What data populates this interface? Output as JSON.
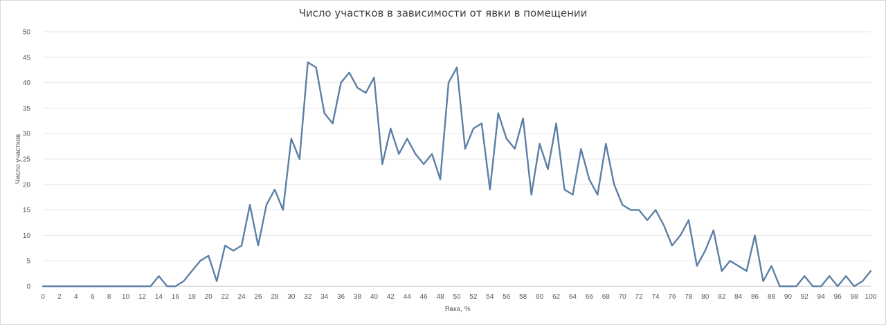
{
  "chart_data": {
    "type": "line",
    "title": "Число участков в зависимости от явки в помещении",
    "xlabel": "Явка, %",
    "ylabel": "Число участков",
    "xlim": [
      0,
      100
    ],
    "ylim": [
      0,
      50
    ],
    "yticks": [
      0,
      5,
      10,
      15,
      20,
      25,
      30,
      35,
      40,
      45,
      50
    ],
    "xticks": [
      0,
      2,
      4,
      6,
      8,
      10,
      12,
      14,
      16,
      18,
      20,
      22,
      24,
      26,
      28,
      30,
      32,
      34,
      36,
      38,
      40,
      42,
      44,
      46,
      48,
      50,
      52,
      54,
      56,
      58,
      60,
      62,
      64,
      66,
      68,
      70,
      72,
      74,
      76,
      78,
      80,
      82,
      84,
      86,
      88,
      90,
      92,
      94,
      96,
      98,
      100
    ],
    "grid": true,
    "legend": "none",
    "color": "#5b7fa6",
    "x": [
      0,
      1,
      2,
      3,
      4,
      5,
      6,
      7,
      8,
      9,
      10,
      11,
      12,
      13,
      14,
      15,
      16,
      17,
      18,
      19,
      20,
      21,
      22,
      23,
      24,
      25,
      26,
      27,
      28,
      29,
      30,
      31,
      32,
      33,
      34,
      35,
      36,
      37,
      38,
      39,
      40,
      41,
      42,
      43,
      44,
      45,
      46,
      47,
      48,
      49,
      50,
      51,
      52,
      53,
      54,
      55,
      56,
      57,
      58,
      59,
      60,
      61,
      62,
      63,
      64,
      65,
      66,
      67,
      68,
      69,
      70,
      71,
      72,
      73,
      74,
      75,
      76,
      77,
      78,
      79,
      80,
      81,
      82,
      83,
      84,
      85,
      86,
      87,
      88,
      89,
      90,
      91,
      92,
      93,
      94,
      95,
      96,
      97,
      98,
      99,
      100
    ],
    "values": [
      0,
      0,
      0,
      0,
      0,
      0,
      0,
      0,
      0,
      0,
      0,
      0,
      0,
      0,
      2,
      0,
      0,
      1,
      3,
      5,
      6,
      1,
      8,
      7,
      8,
      16,
      8,
      16,
      19,
      15,
      29,
      25,
      44,
      43,
      34,
      32,
      40,
      42,
      39,
      38,
      41,
      24,
      31,
      26,
      29,
      26,
      24,
      26,
      21,
      40,
      43,
      27,
      31,
      32,
      19,
      34,
      29,
      27,
      33,
      18,
      28,
      23,
      32,
      19,
      18,
      27,
      21,
      18,
      28,
      20,
      16,
      15,
      15,
      13,
      15,
      12,
      8,
      10,
      13,
      4,
      7,
      11,
      3,
      5,
      4,
      3,
      10,
      1,
      4,
      0,
      0,
      0,
      2,
      0,
      0,
      2,
      0,
      2,
      0,
      1,
      3
    ]
  }
}
